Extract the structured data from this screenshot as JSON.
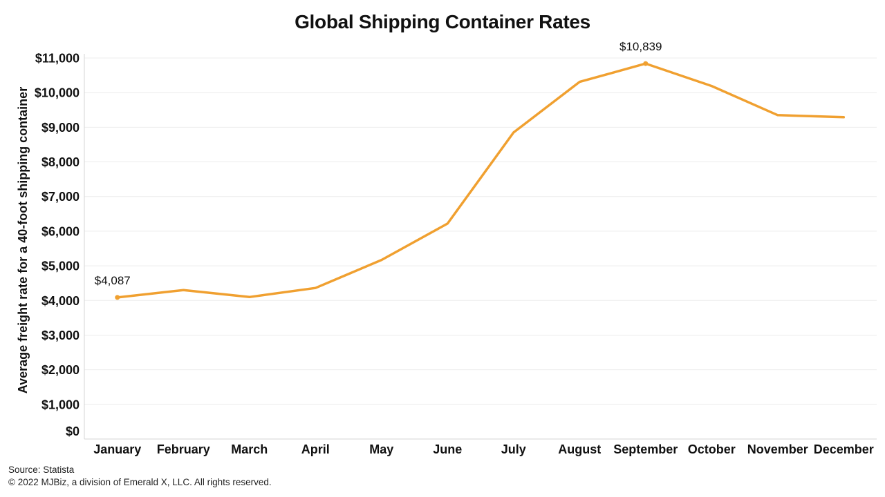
{
  "chart_data": {
    "type": "line",
    "title": "Global Shipping Container Rates",
    "xlabel": "",
    "ylabel": "Average freight rate for a 40-foot shipping container",
    "categories": [
      "January",
      "February",
      "March",
      "April",
      "May",
      "June",
      "July",
      "August",
      "September",
      "October",
      "November",
      "December"
    ],
    "series": [
      {
        "name": "Average freight rate",
        "values": [
          4087,
          4300,
          4100,
          4360,
          5170,
          6220,
          8850,
          10310,
          10839,
          10190,
          9350,
          9290
        ]
      }
    ],
    "ylim": [
      0,
      11000
    ],
    "yticks": [
      0,
      1000,
      2000,
      3000,
      4000,
      5000,
      6000,
      7000,
      8000,
      9000,
      10000,
      11000
    ],
    "ytick_labels": [
      "$0",
      "$1,000",
      "$2,000",
      "$3,000",
      "$4,000",
      "$5,000",
      "$6,000",
      "$7,000",
      "$8,000",
      "$9,000",
      "$10,000",
      "$11,000"
    ],
    "annotations": [
      {
        "category": "January",
        "value": 4087,
        "text": "$4,087"
      },
      {
        "category": "September",
        "value": 10839,
        "text": "$10,839"
      }
    ],
    "grid": true,
    "colors": {
      "line": "#F0A030",
      "grid": "#ececec"
    }
  },
  "footer": {
    "source": "Source: Statista",
    "copyright": "© 2022 MJBiz, a division of Emerald X, LLC. All rights reserved."
  }
}
